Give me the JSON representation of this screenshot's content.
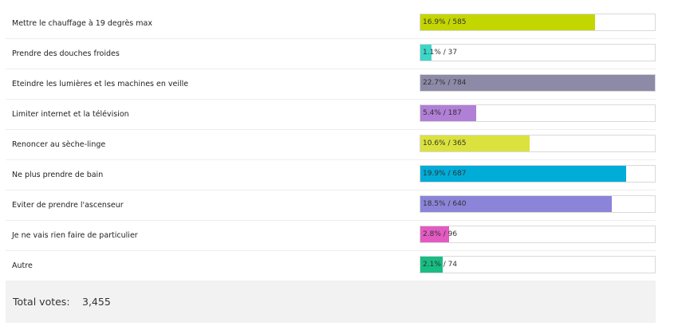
{
  "chart_data": {
    "type": "bar",
    "orientation": "horizontal",
    "categories": [
      "Mettre le chauffage à 19 degrès max",
      "Prendre des douches froides",
      "Eteindre les lumières et les machines en veille",
      "Limiter internet et la télévision",
      "Renoncer au sèche-linge",
      "Ne plus prendre de bain",
      "Eviter de prendre l'ascenseur",
      "Je ne vais rien faire de particulier",
      "Autre"
    ],
    "values": [
      585,
      37,
      784,
      187,
      365,
      687,
      640,
      96,
      74
    ],
    "value_labels": [
      "16.9% / 585",
      "1.1% / 37",
      "22.7% / 784",
      "5.4% / 187",
      "10.6% / 365",
      "19.9% / 687",
      "18.5% / 640",
      "2.8% / 96",
      "2.1% / 74"
    ],
    "colors": [
      "#c4d600",
      "#3dd6c8",
      "#8d8aa8",
      "#b07fd6",
      "#dbe23e",
      "#00acd8",
      "#8b84d8",
      "#e35bc2",
      "#17bd82"
    ],
    "xlim": [
      0,
      784
    ],
    "grid": false
  },
  "total": {
    "label": "Total votes:",
    "value": "3,455"
  }
}
